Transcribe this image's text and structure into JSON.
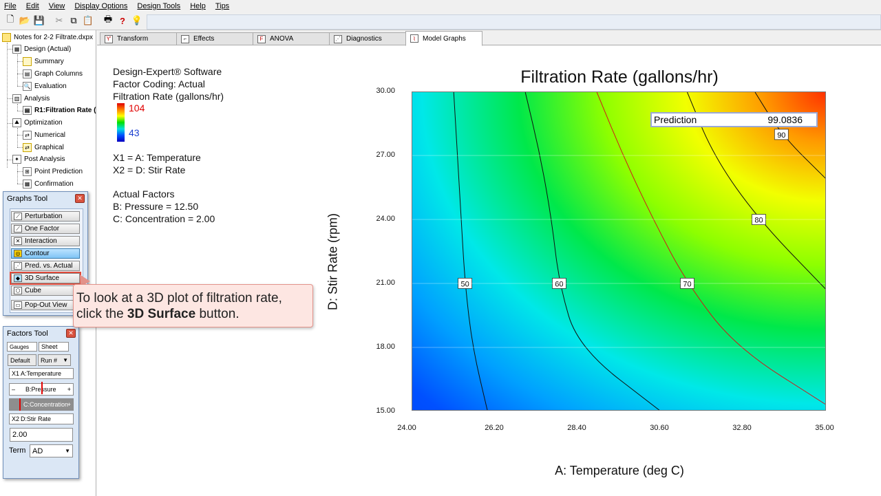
{
  "menu": [
    "File",
    "Edit",
    "View",
    "Display Options",
    "Design Tools",
    "Help",
    "Tips"
  ],
  "tree": {
    "root": "Notes for 2-2 Filtrate.dxpx",
    "items": [
      {
        "label": "Design (Actual)",
        "level": 1
      },
      {
        "label": "Summary",
        "level": 2
      },
      {
        "label": "Graph Columns",
        "level": 2
      },
      {
        "label": "Evaluation",
        "level": 2
      },
      {
        "label": "Analysis",
        "level": 1
      },
      {
        "label": "R1:Filtration Rate (",
        "level": 2
      },
      {
        "label": "Optimization",
        "level": 1
      },
      {
        "label": "Numerical",
        "level": 2
      },
      {
        "label": "Graphical",
        "level": 2
      },
      {
        "label": "Post Analysis",
        "level": 1
      },
      {
        "label": "Point Prediction",
        "level": 2
      },
      {
        "label": "Confirmation",
        "level": 2
      }
    ]
  },
  "tabs": [
    "Transform",
    "Effects",
    "ANOVA",
    "Diagnostics",
    "Model Graphs"
  ],
  "graphs_tool": {
    "title": "Graphs Tool",
    "buttons": [
      "Perturbation",
      "One Factor",
      "Interaction",
      "Contour",
      "Pred. vs. Actual",
      "3D Surface",
      "Cube",
      "Pop-Out View"
    ]
  },
  "factors_tool": {
    "title": "Factors Tool",
    "gauges": "Gauges",
    "sheet": "Sheet",
    "default": "Default",
    "run": "Run #",
    "x1": "X1",
    "x1_label": "A:Temperature",
    "pressure": "B:Pressure",
    "concentration": "C:Concentration",
    "x2": "X2",
    "x2_label": "D:Stir Rate",
    "value": "2.00",
    "term_label": "Term",
    "term_value": "AD"
  },
  "info": {
    "software": "Design-Expert® Software",
    "coding": "Factor Coding: Actual",
    "response": "Filtration Rate (gallons/hr)",
    "legend_high": "104",
    "legend_low": "43",
    "x1": "X1 = A: Temperature",
    "x2": "X2 = D: Stir Rate",
    "actual_title": "Actual Factors",
    "pressure": "B: Pressure = 12.50",
    "concentration": "C: Concentration = 2.00"
  },
  "callout": {
    "line1": "To look at a 3D plot of filtration rate,",
    "line2_prefix": "click the ",
    "line2_bold": "3D Surface",
    "line2_suffix": " button."
  },
  "chart_data": {
    "type": "contour",
    "title": "Filtration Rate (gallons/hr)",
    "xlabel": "A: Temperature (deg C)",
    "ylabel": "D: Stir Rate (rpm)",
    "xlim": [
      24.0,
      35.0
    ],
    "ylim": [
      15.0,
      30.0
    ],
    "x_ticks": [
      "24.00",
      "26.20",
      "28.40",
      "30.60",
      "32.80",
      "35.00"
    ],
    "y_ticks": [
      "15.00",
      "18.00",
      "21.00",
      "24.00",
      "27.00",
      "30.00"
    ],
    "contours": [
      {
        "level": 50,
        "label": "50",
        "points": [
          [
            25.1,
            30.0
          ],
          [
            25.2,
            27.0
          ],
          [
            25.3,
            24.0
          ],
          [
            25.4,
            21.0
          ],
          [
            25.6,
            18.0
          ],
          [
            26.0,
            15.0
          ]
        ]
      },
      {
        "level": 60,
        "label": "60",
        "points": [
          [
            27.0,
            30.0
          ],
          [
            27.4,
            27.0
          ],
          [
            27.7,
            24.0
          ],
          [
            27.9,
            21.0
          ],
          [
            28.4,
            18.0
          ],
          [
            30.6,
            15.0
          ]
        ]
      },
      {
        "level": 70,
        "label": "70",
        "points": [
          [
            28.9,
            30.0
          ],
          [
            29.6,
            27.0
          ],
          [
            30.4,
            24.0
          ],
          [
            31.3,
            21.0
          ],
          [
            32.6,
            18.0
          ],
          [
            35.0,
            15.3
          ]
        ]
      },
      {
        "level": 80,
        "label": "80",
        "points": [
          [
            31.3,
            30.0
          ],
          [
            32.0,
            27.0
          ],
          [
            33.2,
            24.0
          ],
          [
            35.0,
            20.7
          ]
        ]
      },
      {
        "level": 90,
        "label": "90",
        "points": [
          [
            33.1,
            30.0
          ],
          [
            33.8,
            28.0
          ],
          [
            35.0,
            25.9
          ]
        ]
      }
    ],
    "fill_scale": {
      "min": 43,
      "max": 104
    },
    "prediction": {
      "label": "Prediction",
      "value": "99.0836"
    }
  }
}
